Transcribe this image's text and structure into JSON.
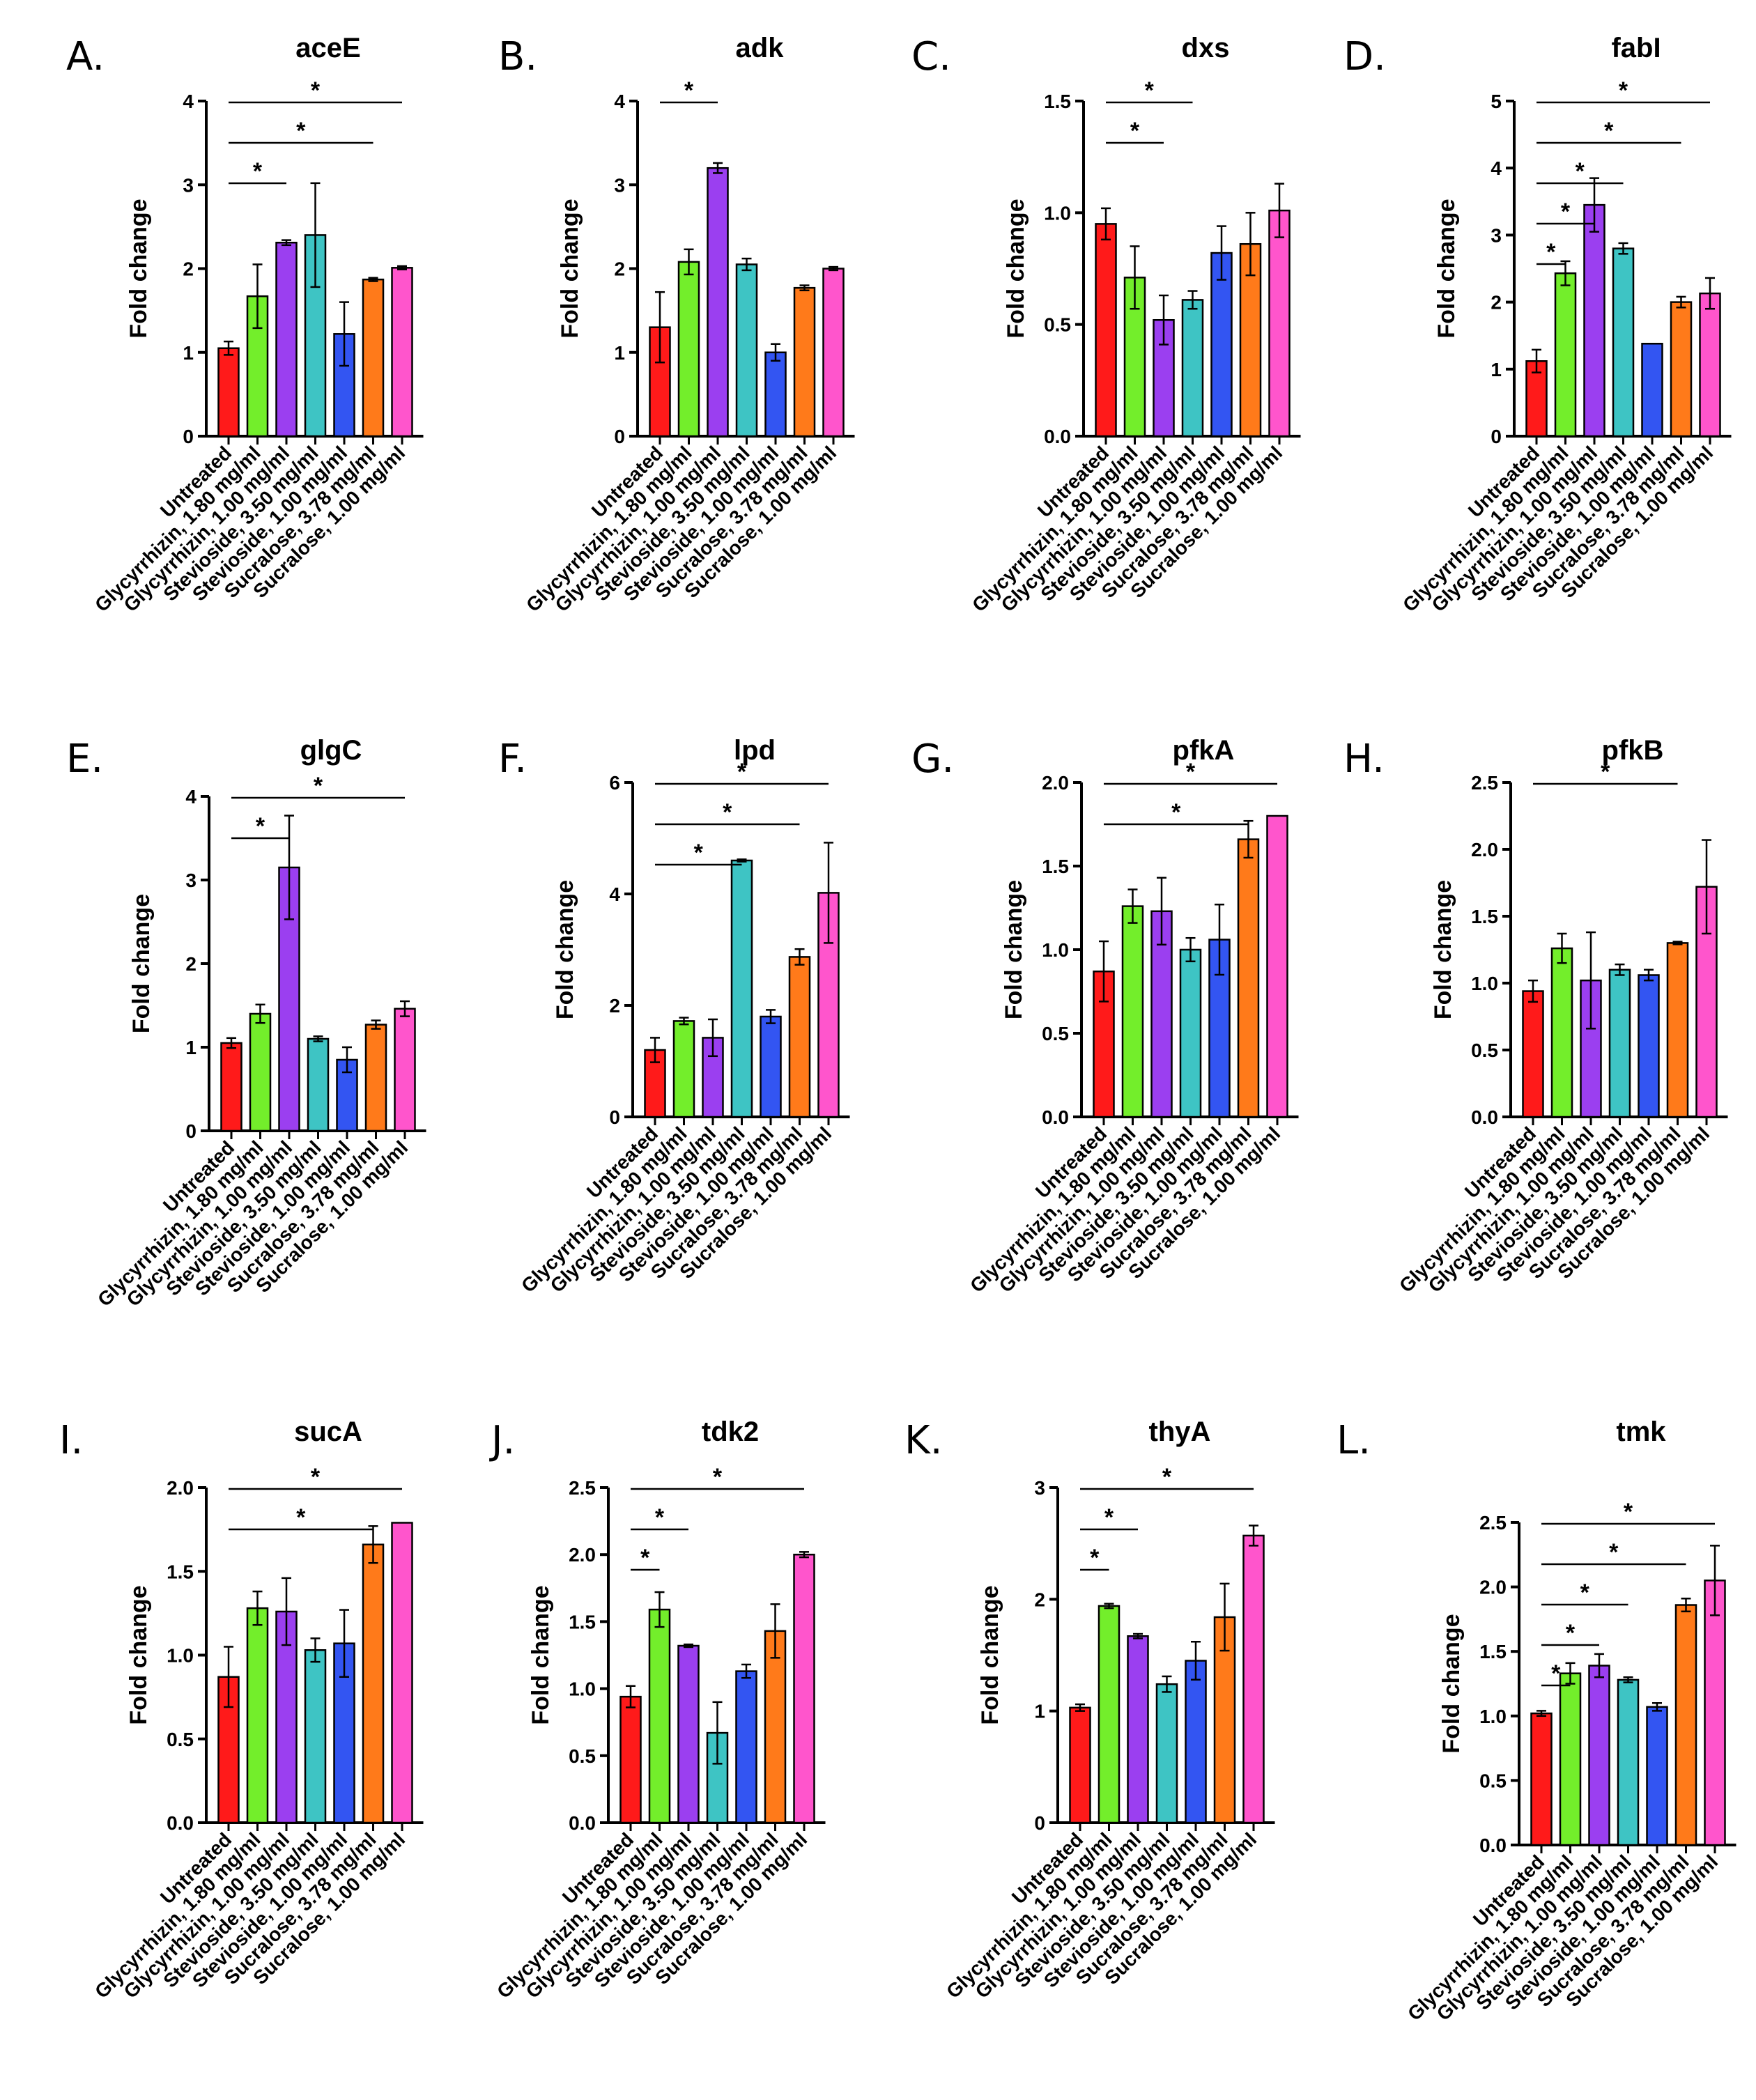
{
  "colors": [
    "#ff1a1a",
    "#73ee2b",
    "#9b3ff0",
    "#3ec4c4",
    "#3355f2",
    "#ff7a1a",
    "#ff55cc"
  ],
  "categories": [
    "Untreated",
    "Glycyrrhizin, 1.80 mg/ml",
    "Glycyrrhizin, 1.00 mg/ml",
    "Stevioside, 3.50 mg/ml",
    "Stevioside, 1.00 mg/ml",
    "Sucralose, 3.78 mg/ml",
    "Sucralose, 1.00 mg/ml"
  ],
  "chart_data": [
    {
      "type": "bar",
      "letter": "A.",
      "title": "aceE",
      "ylabel": "Fold change",
      "ylim": [
        0,
        4
      ],
      "yticks": [
        "0",
        "1",
        "2",
        "3",
        "4"
      ],
      "values": [
        1.05,
        1.67,
        2.31,
        2.4,
        1.22,
        1.87,
        2.01
      ],
      "errors": [
        0.08,
        0.38,
        0.03,
        0.62,
        0.38,
        0.02,
        0.02
      ],
      "significance": [
        {
          "from": 0,
          "to": 2,
          "label": "*"
        },
        {
          "from": 0,
          "to": 5,
          "label": "*"
        },
        {
          "from": 0,
          "to": 6,
          "label": "*"
        }
      ]
    },
    {
      "type": "bar",
      "letter": "B.",
      "title": "adk",
      "ylabel": "Fold change",
      "ylim": [
        0,
        4
      ],
      "yticks": [
        "0",
        "1",
        "2",
        "3",
        "4"
      ],
      "values": [
        1.3,
        2.08,
        3.2,
        2.05,
        1.0,
        1.77,
        2.0
      ],
      "errors": [
        0.42,
        0.15,
        0.06,
        0.07,
        0.1,
        0.03,
        0.02
      ],
      "significance": [
        {
          "from": 0,
          "to": 2,
          "label": "*"
        }
      ]
    },
    {
      "type": "bar",
      "letter": "C.",
      "title": "dxs",
      "ylabel": "Fold change",
      "ylim": [
        0,
        1.5
      ],
      "yticks": [
        "0.0",
        "0.5",
        "1.0",
        "1.5"
      ],
      "values": [
        0.95,
        0.71,
        0.52,
        0.61,
        0.82,
        0.86,
        1.01
      ],
      "errors": [
        0.07,
        0.14,
        0.11,
        0.04,
        0.12,
        0.14,
        0.12
      ],
      "significance": [
        {
          "from": 0,
          "to": 2,
          "label": "*"
        },
        {
          "from": 0,
          "to": 3,
          "label": "*"
        }
      ]
    },
    {
      "type": "bar",
      "letter": "D.",
      "title": "fabI",
      "ylabel": "Fold change",
      "ylim": [
        0,
        5
      ],
      "yticks": [
        "0",
        "1",
        "2",
        "3",
        "4",
        "5"
      ],
      "values": [
        1.12,
        2.43,
        3.45,
        2.8,
        1.38,
        2.0,
        2.13
      ],
      "errors": [
        0.17,
        0.18,
        0.4,
        0.08,
        0.0,
        0.08,
        0.23
      ],
      "significance": [
        {
          "from": 0,
          "to": 1,
          "label": "*"
        },
        {
          "from": 0,
          "to": 2,
          "label": "*"
        },
        {
          "from": 0,
          "to": 3,
          "label": "*"
        },
        {
          "from": 0,
          "to": 5,
          "label": "*"
        },
        {
          "from": 0,
          "to": 6,
          "label": "*"
        }
      ]
    },
    {
      "type": "bar",
      "letter": "E.",
      "title": "glgC",
      "ylabel": "Fold change",
      "ylim": [
        0,
        4
      ],
      "yticks": [
        "0",
        "1",
        "2",
        "3",
        "4"
      ],
      "values": [
        1.05,
        1.4,
        3.15,
        1.1,
        0.85,
        1.27,
        1.46
      ],
      "errors": [
        0.06,
        0.11,
        0.62,
        0.03,
        0.15,
        0.05,
        0.09
      ],
      "significance": [
        {
          "from": 0,
          "to": 2,
          "label": "*"
        },
        {
          "from": 0,
          "to": 6,
          "label": "*"
        }
      ]
    },
    {
      "type": "bar",
      "letter": "F.",
      "title": "lpd",
      "ylabel": "Fold change",
      "ylim": [
        0,
        6
      ],
      "yticks": [
        "0",
        "2",
        "4",
        "6"
      ],
      "values": [
        1.2,
        1.72,
        1.42,
        4.6,
        1.8,
        2.87,
        4.02
      ],
      "errors": [
        0.22,
        0.06,
        0.33,
        0.02,
        0.12,
        0.14,
        0.9
      ],
      "significance": [
        {
          "from": 0,
          "to": 3,
          "label": "*"
        },
        {
          "from": 0,
          "to": 5,
          "label": "*"
        },
        {
          "from": 0,
          "to": 6,
          "label": "*"
        }
      ]
    },
    {
      "type": "bar",
      "letter": "G.",
      "title": "pfkA",
      "ylabel": "Fold change",
      "ylim": [
        0,
        2
      ],
      "yticks": [
        "0.0",
        "0.5",
        "1.0",
        "1.5",
        "2.0"
      ],
      "values": [
        0.87,
        1.26,
        1.23,
        1.0,
        1.06,
        1.66,
        1.8
      ],
      "errors": [
        0.18,
        0.1,
        0.2,
        0.07,
        0.21,
        0.11,
        0.0
      ],
      "significance": [
        {
          "from": 0,
          "to": 5,
          "label": "*"
        },
        {
          "from": 0,
          "to": 6,
          "label": "*"
        }
      ]
    },
    {
      "type": "bar",
      "letter": "H.",
      "title": "pfkB",
      "ylabel": "Fold change",
      "ylim": [
        0,
        2.5
      ],
      "yticks": [
        "0.0",
        "0.5",
        "1.0",
        "1.5",
        "2.0",
        "2.5"
      ],
      "values": [
        0.94,
        1.26,
        1.02,
        1.1,
        1.06,
        1.3,
        1.72
      ],
      "errors": [
        0.08,
        0.11,
        0.36,
        0.04,
        0.04,
        0.01,
        0.35
      ],
      "significance": [
        {
          "from": 0,
          "to": 5,
          "label": "*"
        }
      ]
    },
    {
      "type": "bar",
      "letter": "I.",
      "title": "sucA",
      "ylabel": "Fold change",
      "ylim": [
        0,
        2
      ],
      "yticks": [
        "0.0",
        "0.5",
        "1.0",
        "1.5",
        "2.0"
      ],
      "values": [
        0.87,
        1.28,
        1.26,
        1.03,
        1.07,
        1.66,
        1.79
      ],
      "errors": [
        0.18,
        0.1,
        0.2,
        0.07,
        0.2,
        0.11,
        0.0
      ],
      "significance": [
        {
          "from": 0,
          "to": 5,
          "label": "*"
        },
        {
          "from": 0,
          "to": 6,
          "label": "*"
        }
      ]
    },
    {
      "type": "bar",
      "letter": "J.",
      "title": "tdk2",
      "ylabel": "Fold change",
      "ylim": [
        0,
        2.5
      ],
      "yticks": [
        "0.0",
        "0.5",
        "1.0",
        "1.5",
        "2.0",
        "2.5"
      ],
      "values": [
        0.94,
        1.59,
        1.32,
        0.67,
        1.13,
        1.43,
        2.0
      ],
      "errors": [
        0.08,
        0.13,
        0.01,
        0.23,
        0.05,
        0.2,
        0.02
      ],
      "significance": [
        {
          "from": 0,
          "to": 1,
          "label": "*"
        },
        {
          "from": 0,
          "to": 2,
          "label": "*"
        },
        {
          "from": 0,
          "to": 6,
          "label": "*"
        }
      ]
    },
    {
      "type": "bar",
      "letter": "K.",
      "title": "thyA",
      "ylabel": "Fold change",
      "ylim": [
        0,
        3
      ],
      "yticks": [
        "0",
        "1",
        "2",
        "3"
      ],
      "values": [
        1.03,
        1.94,
        1.67,
        1.24,
        1.45,
        1.84,
        2.57
      ],
      "errors": [
        0.03,
        0.02,
        0.02,
        0.07,
        0.17,
        0.3,
        0.09
      ],
      "significance": [
        {
          "from": 0,
          "to": 1,
          "label": "*"
        },
        {
          "from": 0,
          "to": 2,
          "label": "*"
        },
        {
          "from": 0,
          "to": 6,
          "label": "*"
        }
      ]
    },
    {
      "type": "bar",
      "letter": "L.",
      "title": "tmk",
      "ylabel": "Fold change",
      "ylim": [
        0,
        2.5
      ],
      "yticks": [
        "0.0",
        "0.5",
        "1.0",
        "1.5",
        "2.0",
        "2.5"
      ],
      "values": [
        1.02,
        1.33,
        1.39,
        1.28,
        1.07,
        1.86,
        2.05
      ],
      "errors": [
        0.02,
        0.08,
        0.09,
        0.02,
        0.03,
        0.05,
        0.27
      ],
      "significance": [
        {
          "from": 0,
          "to": 1,
          "label": "*"
        },
        {
          "from": 0,
          "to": 2,
          "label": "*"
        },
        {
          "from": 0,
          "to": 3,
          "label": "*"
        },
        {
          "from": 0,
          "to": 5,
          "label": "*"
        },
        {
          "from": 0,
          "to": 6,
          "label": "*"
        }
      ]
    }
  ]
}
